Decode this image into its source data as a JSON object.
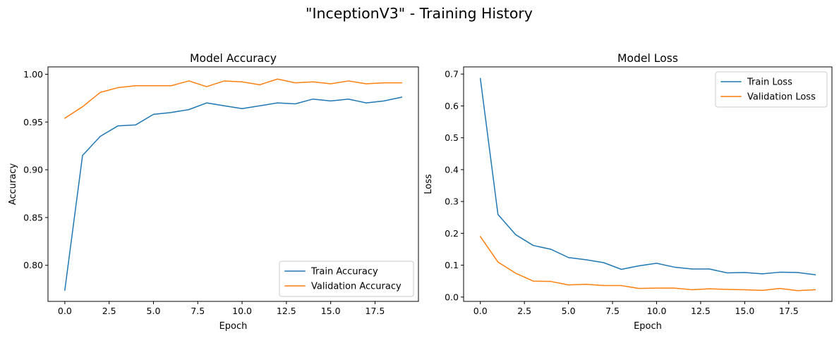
{
  "figure": {
    "title": "\"InceptionV3\" - Training History"
  },
  "chart_data": [
    {
      "type": "line",
      "title": "Model Accuracy",
      "xlabel": "Epoch",
      "ylabel": "Accuracy",
      "xlim": [
        -0.95,
        19.95
      ],
      "ylim": [
        0.7622,
        1.0077
      ],
      "xticks": [
        0.0,
        2.5,
        5.0,
        7.5,
        10.0,
        12.5,
        15.0,
        17.5
      ],
      "xtick_labels": [
        "0.0",
        "2.5",
        "5.0",
        "7.5",
        "10.0",
        "12.5",
        "15.0",
        "17.5"
      ],
      "yticks": [
        0.8,
        0.85,
        0.9,
        0.95,
        1.0
      ],
      "ytick_labels": [
        "0.80",
        "0.85",
        "0.90",
        "0.95",
        "1.00"
      ],
      "grid": false,
      "legend_position": "lower-right",
      "x": [
        0,
        1,
        2,
        3,
        4,
        5,
        6,
        7,
        8,
        9,
        10,
        11,
        12,
        13,
        14,
        15,
        16,
        17,
        18,
        19
      ],
      "series": [
        {
          "name": "Train Accuracy",
          "color": "#1f77b4",
          "values": [
            0.774,
            0.915,
            0.935,
            0.946,
            0.947,
            0.958,
            0.96,
            0.963,
            0.97,
            0.967,
            0.964,
            0.967,
            0.97,
            0.969,
            0.974,
            0.972,
            0.974,
            0.97,
            0.972,
            0.976
          ]
        },
        {
          "name": "Validation Accuracy",
          "color": "#ff7f0e",
          "values": [
            0.954,
            0.966,
            0.981,
            0.986,
            0.988,
            0.988,
            0.988,
            0.993,
            0.987,
            0.993,
            0.992,
            0.989,
            0.995,
            0.991,
            0.992,
            0.99,
            0.993,
            0.99,
            0.991,
            0.991
          ]
        }
      ]
    },
    {
      "type": "line",
      "title": "Model Loss",
      "xlabel": "Epoch",
      "ylabel": "Loss",
      "xlim": [
        -0.95,
        19.95
      ],
      "ylim": [
        -0.0136,
        0.7225
      ],
      "xticks": [
        0.0,
        2.5,
        5.0,
        7.5,
        10.0,
        12.5,
        15.0,
        17.5
      ],
      "xtick_labels": [
        "0.0",
        "2.5",
        "5.0",
        "7.5",
        "10.0",
        "12.5",
        "15.0",
        "17.5"
      ],
      "yticks": [
        0.0,
        0.1,
        0.2,
        0.3,
        0.4,
        0.5,
        0.6,
        0.7
      ],
      "ytick_labels": [
        "0.0",
        "0.1",
        "0.2",
        "0.3",
        "0.4",
        "0.5",
        "0.6",
        "0.7"
      ],
      "grid": false,
      "legend_position": "upper-right",
      "x": [
        0,
        1,
        2,
        3,
        4,
        5,
        6,
        7,
        8,
        9,
        10,
        11,
        12,
        13,
        14,
        15,
        16,
        17,
        18,
        19
      ],
      "series": [
        {
          "name": "Train Loss",
          "color": "#1f77b4",
          "values": [
            0.686,
            0.259,
            0.196,
            0.162,
            0.15,
            0.124,
            0.117,
            0.108,
            0.087,
            0.098,
            0.106,
            0.094,
            0.088,
            0.088,
            0.076,
            0.077,
            0.073,
            0.078,
            0.077,
            0.07
          ]
        },
        {
          "name": "Validation Loss",
          "color": "#ff7f0e",
          "values": [
            0.19,
            0.11,
            0.075,
            0.05,
            0.049,
            0.038,
            0.04,
            0.036,
            0.036,
            0.027,
            0.028,
            0.028,
            0.023,
            0.026,
            0.024,
            0.023,
            0.021,
            0.027,
            0.02,
            0.023
          ]
        }
      ]
    }
  ]
}
